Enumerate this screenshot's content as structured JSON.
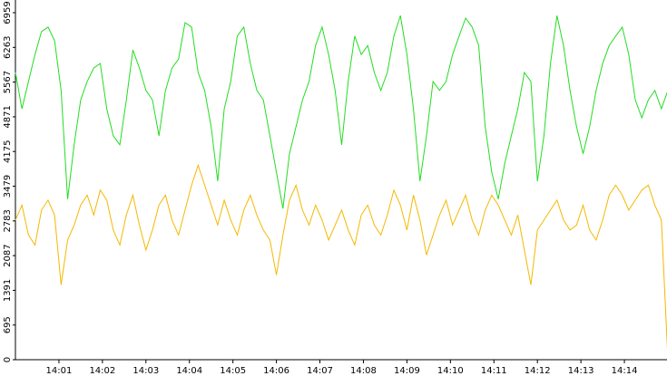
{
  "chart_data": {
    "type": "line",
    "x": [
      0,
      0.15,
      0.3,
      0.45,
      0.6,
      0.75,
      0.9,
      1.05,
      1.2,
      1.35,
      1.5,
      1.65,
      1.8,
      1.95,
      2.1,
      2.25,
      2.4,
      2.55,
      2.7,
      2.85,
      3,
      3.15,
      3.3,
      3.45,
      3.6,
      3.75,
      3.9,
      4.05,
      4.2,
      4.35,
      4.5,
      4.65,
      4.8,
      4.95,
      5.1,
      5.25,
      5.4,
      5.55,
      5.7,
      5.85,
      6,
      6.15,
      6.3,
      6.45,
      6.6,
      6.75,
      6.9,
      7.05,
      7.2,
      7.35,
      7.5,
      7.65,
      7.8,
      7.95,
      8.1,
      8.25,
      8.4,
      8.55,
      8.7,
      8.85,
      9,
      9.15,
      9.3,
      9.45,
      9.6,
      9.75,
      9.9,
      10.05,
      10.2,
      10.35,
      10.5,
      10.65,
      10.8,
      10.95,
      11.1,
      11.25,
      11.4,
      11.55,
      11.7,
      11.85,
      12,
      12.15,
      12.3,
      12.45,
      12.6,
      12.75,
      12.9,
      13.05,
      13.2,
      13.35,
      13.5,
      13.65,
      13.8,
      13.95,
      14.1,
      14.25,
      14.4,
      14.55,
      14.7,
      14.85,
      15
    ],
    "series": [
      {
        "color": "#22dd22",
        "values": [
          5760,
          5030,
          5580,
          6120,
          6580,
          6670,
          6400,
          5400,
          3220,
          4310,
          5210,
          5580,
          5850,
          5940,
          5030,
          4490,
          4310,
          5210,
          6210,
          5850,
          5400,
          5210,
          4490,
          5400,
          5850,
          6030,
          6760,
          6670,
          5760,
          5400,
          4670,
          3580,
          5030,
          5580,
          6490,
          6670,
          5940,
          5400,
          5210,
          4490,
          3760,
          3030,
          4130,
          4670,
          5210,
          5580,
          6300,
          6670,
          6120,
          5400,
          4310,
          5580,
          6490,
          6120,
          6300,
          5760,
          5400,
          5760,
          6490,
          6900,
          6120,
          5030,
          3580,
          4490,
          5580,
          5400,
          5580,
          6120,
          6490,
          6850,
          6670,
          6300,
          4670,
          3760,
          3220,
          3940,
          4490,
          5030,
          5760,
          5580,
          3580,
          4490,
          5940,
          6900,
          6300,
          5400,
          4670,
          4130,
          4670,
          5400,
          5940,
          6300,
          6490,
          6670,
          6120,
          5210,
          4850,
          5210,
          5400,
          5030,
          5400
        ]
      },
      {
        "color": "#f5b800",
        "values": [
          2800,
          3100,
          2500,
          2300,
          3000,
          3200,
          2900,
          1500,
          2400,
          2700,
          3100,
          3300,
          2900,
          3400,
          3200,
          2600,
          2300,
          2900,
          3300,
          2700,
          2200,
          2600,
          3100,
          3300,
          2800,
          2500,
          3000,
          3500,
          3900,
          3500,
          3100,
          2700,
          3200,
          2800,
          2500,
          3000,
          3300,
          2900,
          2600,
          2400,
          1700,
          2500,
          3200,
          3500,
          3000,
          2700,
          3100,
          2800,
          2400,
          2700,
          3000,
          2600,
          2300,
          2900,
          3100,
          2700,
          2500,
          2900,
          3400,
          3100,
          2600,
          3300,
          2800,
          2100,
          2500,
          2900,
          3200,
          2700,
          3000,
          3300,
          2800,
          2500,
          3000,
          3300,
          3100,
          2800,
          2500,
          2900,
          2200,
          1500,
          2600,
          2800,
          3000,
          3200,
          2800,
          2600,
          2700,
          3100,
          2600,
          2400,
          2800,
          3300,
          3500,
          3300,
          3000,
          3200,
          3400,
          3500,
          3100,
          2800,
          0
        ]
      }
    ],
    "xlim": [
      0,
      15
    ],
    "xticks": [
      {
        "value": 1,
        "label": "14:01"
      },
      {
        "value": 2,
        "label": "14:02"
      },
      {
        "value": 3,
        "label": "14:03"
      },
      {
        "value": 4,
        "label": "14:04"
      },
      {
        "value": 5,
        "label": "14:05"
      },
      {
        "value": 6,
        "label": "14:06"
      },
      {
        "value": 7,
        "label": "14:07"
      },
      {
        "value": 8,
        "label": "14:08"
      },
      {
        "value": 9,
        "label": "14:09"
      },
      {
        "value": 10,
        "label": "14:10"
      },
      {
        "value": 11,
        "label": "14:11"
      },
      {
        "value": 12,
        "label": "14:12"
      },
      {
        "value": 13,
        "label": "14:13"
      },
      {
        "value": 14,
        "label": "14:14"
      }
    ],
    "ylim": [
      0,
      6959
    ],
    "yticks": [
      0,
      695,
      1391,
      2087,
      2783,
      3479,
      4175,
      4871,
      5567,
      6263,
      6959
    ]
  }
}
